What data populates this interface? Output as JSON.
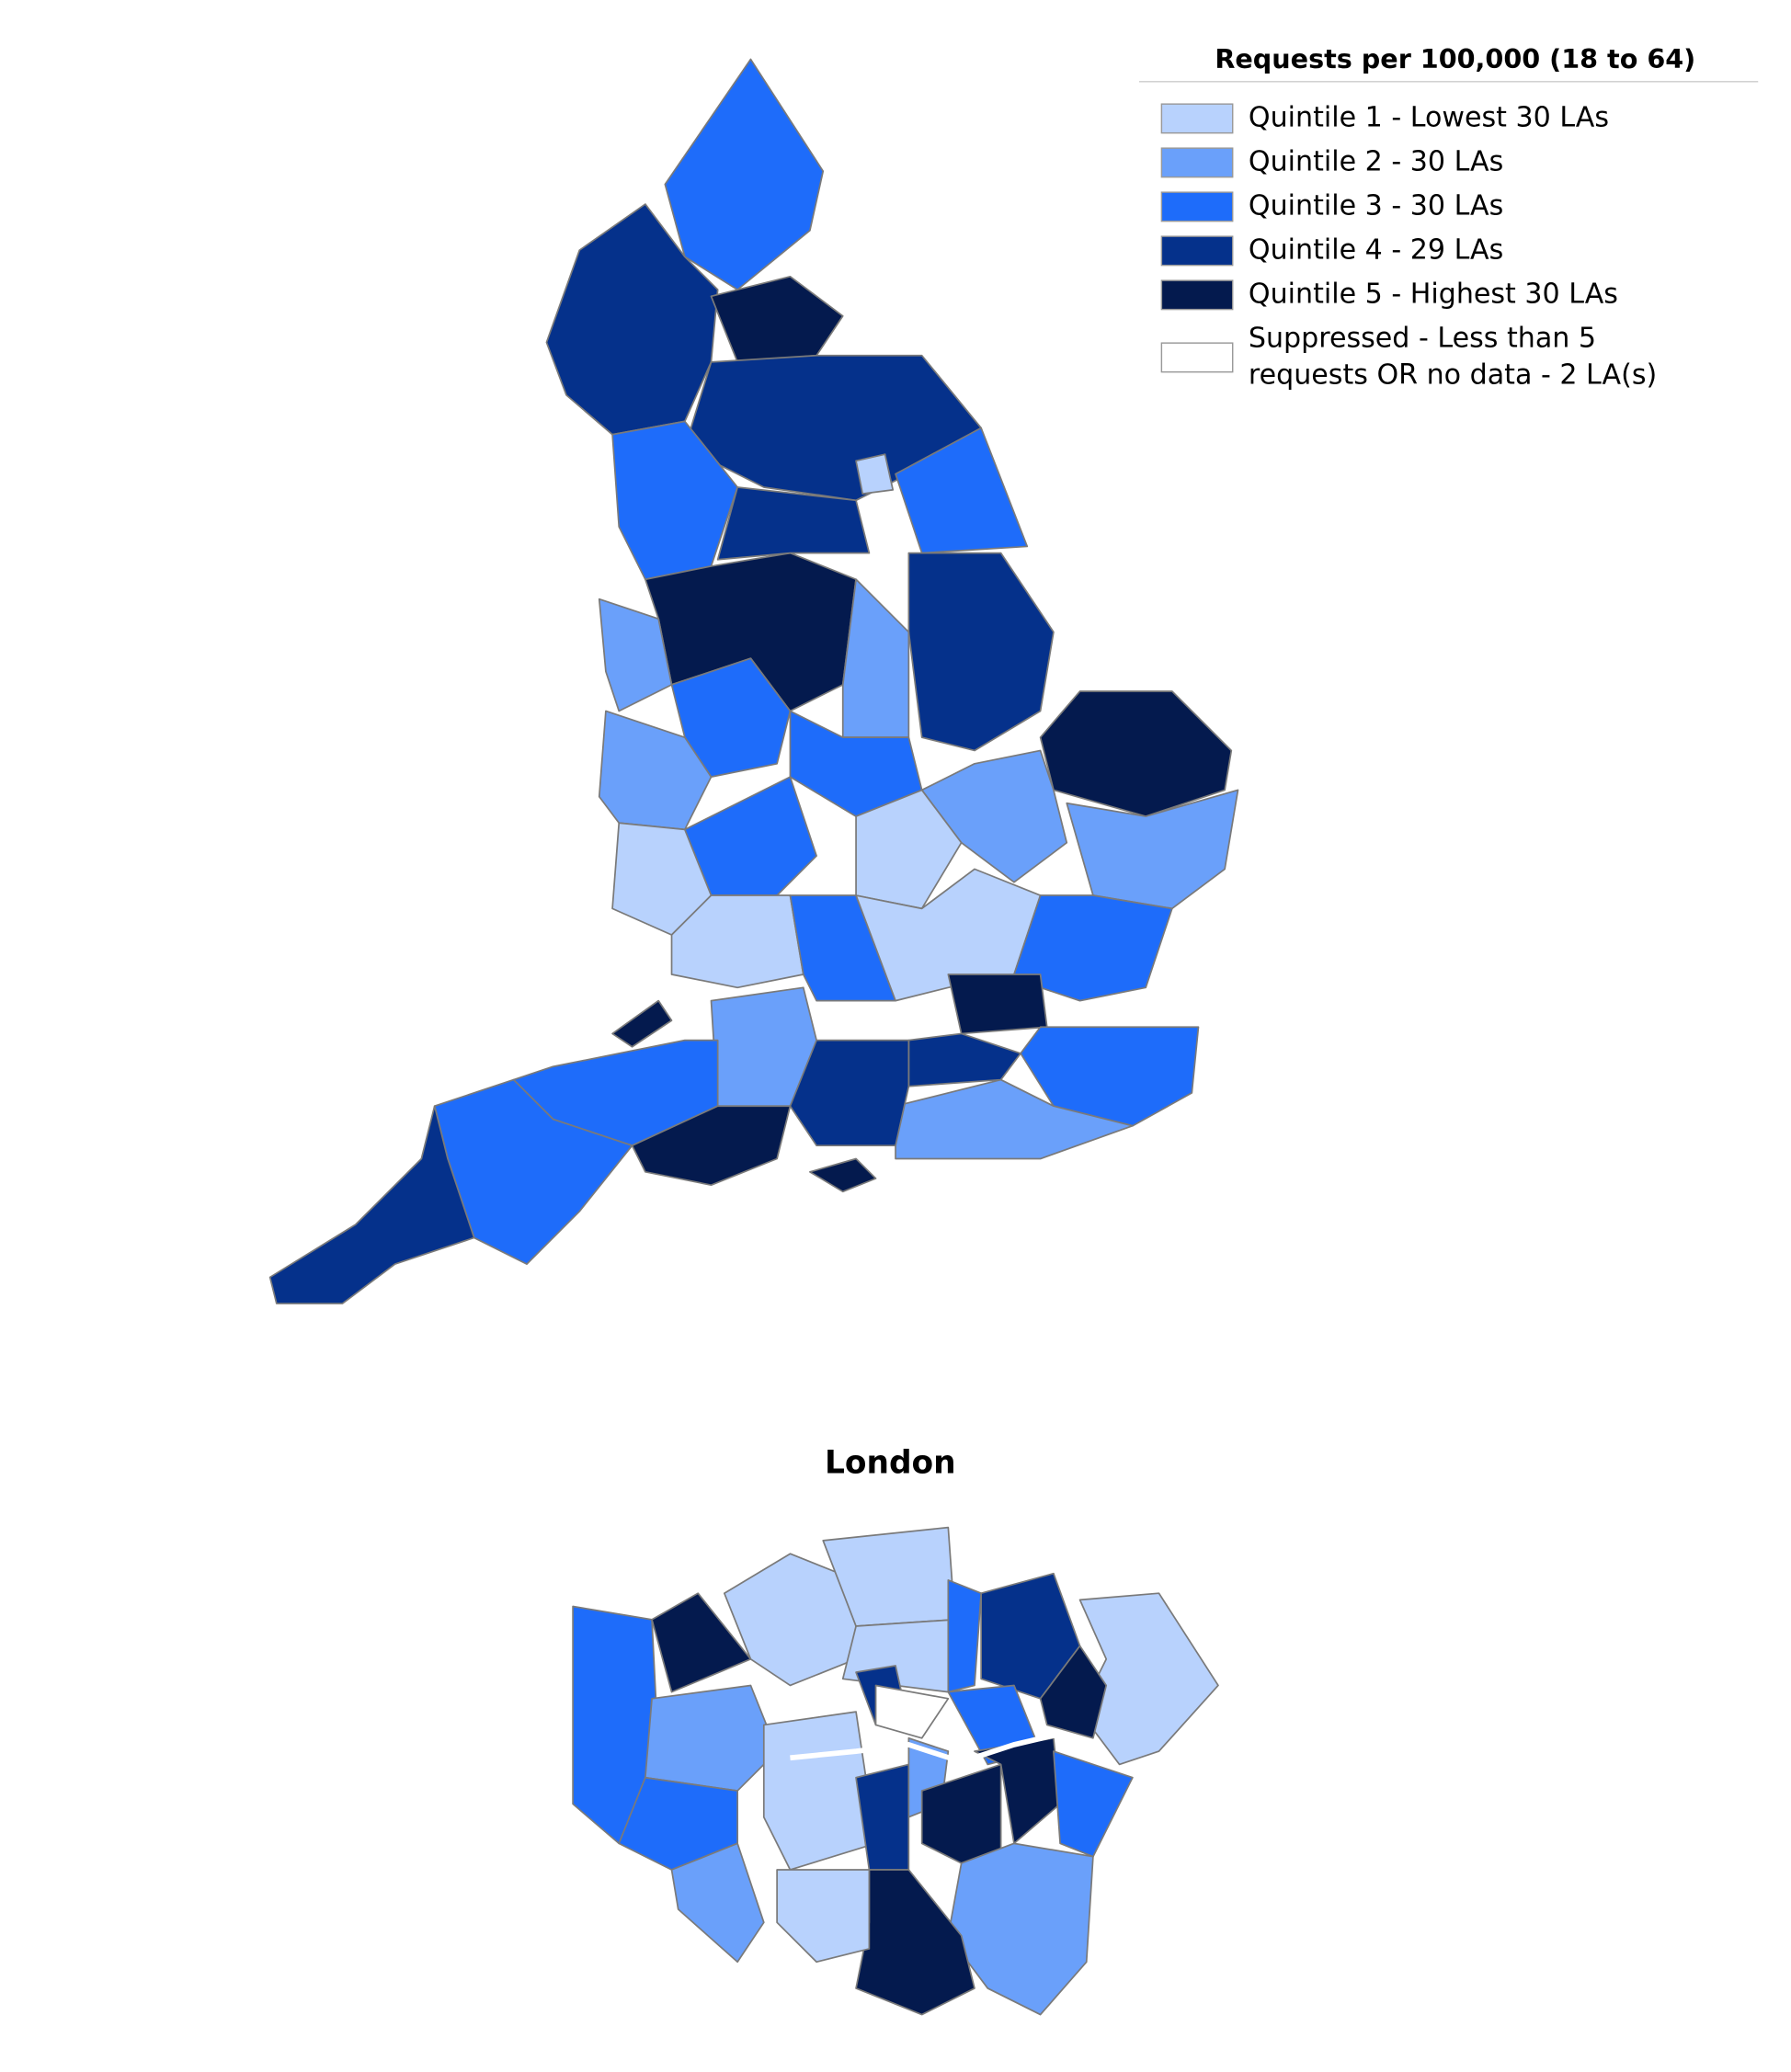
{
  "legend": {
    "title": "Requests per 100,000 (18 to 64)",
    "items": [
      {
        "lines": [
          "Quintile 1 - Lowest 30 LAs"
        ],
        "color": "#b8d2fd"
      },
      {
        "lines": [
          "Quintile 2 - 30 LAs"
        ],
        "color": "#6aa0fa"
      },
      {
        "lines": [
          "Quintile 3 - 30 LAs"
        ],
        "color": "#1e6cfa"
      },
      {
        "lines": [
          "Quintile 4 - 29 LAs"
        ],
        "color": "#05318b"
      },
      {
        "lines": [
          "Quintile 5 - Highest 30 LAs"
        ],
        "color": "#041a4e"
      },
      {
        "lines": [
          "Suppressed - Less than 5",
          "requests OR no data - 2 LA(s)"
        ],
        "color": "#ffffff"
      }
    ]
  },
  "london_title": "London"
}
